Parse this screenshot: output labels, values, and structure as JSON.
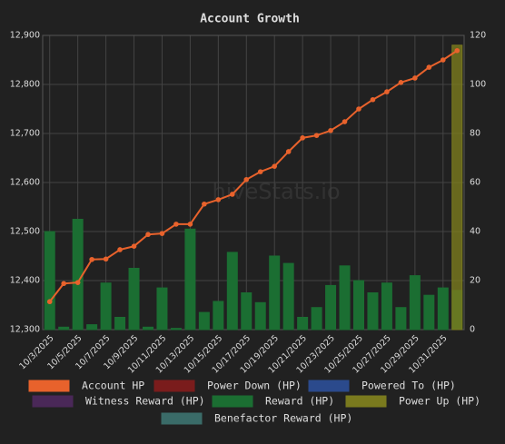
{
  "chart_data": {
    "type": "bar",
    "title": "Account Growth",
    "watermark": "hiveStats.io",
    "categories": [
      "10/3/2025",
      null,
      "10/5/2025",
      null,
      "10/7/2025",
      null,
      "10/9/2025",
      null,
      "10/11/2025",
      null,
      "10/13/2025",
      null,
      "10/15/2025",
      null,
      "10/17/2025",
      null,
      "10/19/2025",
      null,
      "10/21/2025",
      null,
      "10/23/2025",
      null,
      "10/25/2025",
      null,
      "10/27/2025",
      null,
      "10/29/2025",
      null,
      "10/31/2025",
      null
    ],
    "series": [
      {
        "name": "Account HP",
        "color": "#e8622c",
        "kind": "line",
        "values": [
          12357,
          12394,
          12396,
          12443,
          12444,
          12463,
          12470,
          12494,
          12496,
          12515,
          12515,
          12556,
          12565,
          12576,
          12606,
          12622,
          12633,
          12663,
          12691,
          12696,
          12706,
          12724,
          12750,
          12769,
          12785,
          12804,
          12813,
          12835,
          12850,
          12869
        ]
      },
      {
        "name": "Power Down (HP)",
        "color": "#7a1c1c",
        "kind": "bar",
        "axis": "y2"
      },
      {
        "name": "Powered To (HP)",
        "color": "#2b4a8c",
        "kind": "bar",
        "axis": "y2"
      },
      {
        "name": "Witness Reward (HP)",
        "color": "#4a2858",
        "kind": "bar",
        "axis": "y2"
      },
      {
        "name": "Reward (HP)",
        "color": "#1b6e32",
        "kind": "bar",
        "axis": "y2",
        "values": [
          40,
          1,
          45,
          2,
          19,
          5,
          25,
          1,
          17,
          0.5,
          41,
          7,
          11.5,
          31.5,
          15,
          11,
          30,
          27,
          5,
          9,
          18,
          26,
          20,
          15,
          19,
          9,
          22,
          14,
          17,
          16
        ]
      },
      {
        "name": "Power Up (HP)",
        "color": "#7a7a1e",
        "kind": "bar",
        "axis": "y2",
        "values": [
          null,
          null,
          null,
          null,
          null,
          null,
          null,
          null,
          null,
          null,
          null,
          null,
          null,
          null,
          null,
          null,
          null,
          null,
          null,
          null,
          null,
          null,
          null,
          null,
          null,
          null,
          null,
          null,
          null,
          116
        ]
      },
      {
        "name": "Benefactor Reward (HP)",
        "color": "#3a6b68",
        "kind": "bar",
        "axis": "y2"
      }
    ],
    "ylim": [
      12300,
      12900
    ],
    "yticks": [
      {
        "value": 12300,
        "label": "12,300"
      },
      {
        "value": 12400,
        "label": "12,400"
      },
      {
        "value": 12500,
        "label": "12,500"
      },
      {
        "value": 12600,
        "label": "12,600"
      },
      {
        "value": 12700,
        "label": "12,700"
      },
      {
        "value": 12800,
        "label": "12,800"
      },
      {
        "value": 12900,
        "label": "12,900"
      }
    ],
    "y2lim": [
      0,
      120
    ],
    "y2ticks": [
      0,
      20,
      40,
      60,
      80,
      100,
      120
    ],
    "grid": true
  }
}
